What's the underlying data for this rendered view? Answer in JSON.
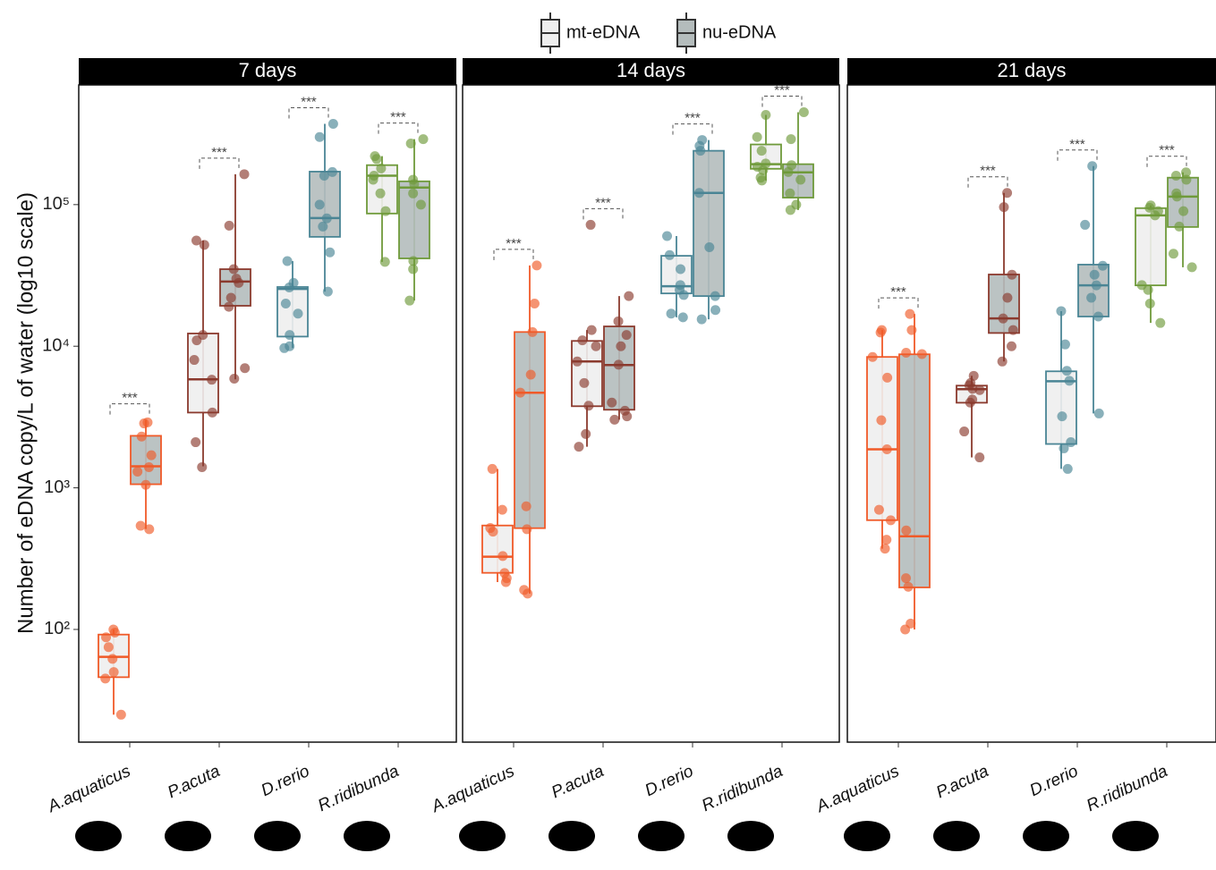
{
  "chart_data": {
    "type": "boxplot",
    "ylabel": "Number of eDNA copy/L of water (log10 scale)",
    "log_scale": true,
    "ylim": [
      16,
      700000
    ],
    "yticks": [
      {
        "value": 100,
        "label": "10²"
      },
      {
        "value": 1000,
        "label": "10³"
      },
      {
        "value": 10000,
        "label": "10⁴"
      },
      {
        "value": 100000,
        "label": "10⁵"
      }
    ],
    "categories": [
      "A.aquaticus",
      "P.acuta",
      "D.rerio",
      "R.ridibunda"
    ],
    "category_colors": [
      "#f05a28",
      "#8b3a2e",
      "#4a8595",
      "#6f9a3a"
    ],
    "series": [
      {
        "name": "mt-eDNA",
        "color": "#eeeeee"
      },
      {
        "name": "nu-eDNA",
        "color": "#b4bcbc"
      }
    ],
    "facets": [
      {
        "title": "7 days",
        "annotations": [
          "***",
          "***",
          "***",
          "***"
        ],
        "boxes": [
          [
            {
              "low": 25,
              "q1": 46,
              "median": 64,
              "q3": 92,
              "high": 100,
              "points": [
                100,
                95,
                88,
                75,
                62,
                50,
                45,
                25
              ]
            },
            {
              "low": 1420,
              "q1": 3400,
              "median": 5840,
              "q3": 12300,
              "high": 55800,
              "points": [
                55800,
                52000,
                12000,
                11000,
                8000,
                5800,
                3400,
                2100,
                1400
              ]
            },
            {
              "low": 9700,
              "q1": 11700,
              "median": 25400,
              "q3": 26200,
              "high": 39900,
              "points": [
                39900,
                28000,
                26000,
                20000,
                17000,
                12000,
                10000,
                9700
              ]
            },
            {
              "low": 39400,
              "q1": 86500,
              "median": 160000,
              "q3": 190000,
              "high": 220000,
              "points": [
                220000,
                210000,
                180000,
                160000,
                150000,
                120000,
                90000,
                39400
              ]
            }
          ],
          [
            {
              "low": 512,
              "q1": 1060,
              "median": 1420,
              "q3": 2330,
              "high": 3020,
              "points": [
                2900,
                2850,
                2300,
                1700,
                1400,
                1300,
                1050,
                540,
                510
              ]
            },
            {
              "low": 5840,
              "q1": 19300,
              "median": 28600,
              "q3": 35000,
              "high": 164000,
              "points": [
                164000,
                71000,
                35000,
                30000,
                28000,
                22000,
                19000,
                7000,
                5900
              ]
            },
            {
              "low": 24300,
              "q1": 59200,
              "median": 80400,
              "q3": 171000,
              "high": 372000,
              "points": [
                372000,
                300000,
                170000,
                160000,
                100000,
                80000,
                70000,
                46000,
                24300
              ]
            },
            {
              "low": 21000,
              "q1": 41700,
              "median": 132000,
              "q3": 146000,
              "high": 290000,
              "points": [
                290000,
                270000,
                150000,
                140000,
                120000,
                100000,
                40000,
                35000,
                21000
              ]
            }
          ]
        ]
      },
      {
        "title": "14 days",
        "annotations": [
          "***",
          "***",
          "***",
          "***"
        ],
        "boxes": [
          [
            {
              "low": 216,
              "q1": 251,
              "median": 326,
              "q3": 542,
              "high": 1360,
              "points": [
                1360,
                700,
                520,
                490,
                330,
                250,
                230,
                216
              ]
            },
            {
              "low": 1950,
              "q1": 3770,
              "median": 7800,
              "q3": 10900,
              "high": 13000,
              "points": [
                72000,
                13000,
                11000,
                10000,
                7800,
                5500,
                3800,
                2400,
                1950
              ]
            },
            {
              "low": 16000,
              "q1": 23600,
              "median": 26500,
              "q3": 43500,
              "high": 60000,
              "points": [
                60000,
                44000,
                35000,
                27000,
                25000,
                23000,
                17000,
                16000
              ]
            },
            {
              "low": 148000,
              "q1": 179000,
              "median": 193000,
              "q3": 266000,
              "high": 430000,
              "points": [
                430000,
                300000,
                240000,
                195000,
                185000,
                175000,
                155000,
                148000
              ]
            }
          ],
          [
            {
              "low": 179,
              "q1": 519,
              "median": 4690,
              "q3": 12600,
              "high": 37200,
              "points": [
                37200,
                20000,
                12600,
                6300,
                4700,
                740,
                510,
                190,
                179
              ]
            },
            {
              "low": 3030,
              "q1": 3560,
              "median": 7360,
              "q3": 13800,
              "high": 22600,
              "points": [
                22600,
                15000,
                12000,
                10000,
                7400,
                4000,
                3500,
                3200,
                3030
              ]
            },
            {
              "low": 15500,
              "q1": 22600,
              "median": 121000,
              "q3": 240000,
              "high": 286000,
              "points": [
                286000,
                260000,
                240000,
                121000,
                50000,
                22600,
                18000,
                15500
              ]
            },
            {
              "low": 91600,
              "q1": 112000,
              "median": 169000,
              "q3": 193000,
              "high": 449000,
              "points": [
                449000,
                290000,
                190000,
                170000,
                150000,
                120000,
                100000,
                91600
              ]
            }
          ]
        ]
      },
      {
        "title": "21 days",
        "annotations": [
          "***",
          "***",
          "***",
          "***"
        ],
        "boxes": [
          [
            {
              "low": 372,
              "q1": 591,
              "median": 1870,
              "q3": 8400,
              "high": 13000,
              "points": [
                13000,
                12500,
                8400,
                6000,
                3000,
                1870,
                700,
                590,
                430,
                372
              ]
            },
            {
              "low": 1640,
              "q1": 3990,
              "median": 4970,
              "q3": 5270,
              "high": 6180,
              "points": [
                6180,
                5500,
                5300,
                5000,
                4900,
                4200,
                4000,
                2500,
                1640
              ]
            },
            {
              "low": 1360,
              "q1": 2040,
              "median": 5660,
              "q3": 6650,
              "high": 17700,
              "points": [
                17700,
                10300,
                6700,
                5700,
                3200,
                2100,
                1900,
                1360
              ]
            },
            {
              "low": 14600,
              "q1": 26900,
              "median": 84000,
              "q3": 94400,
              "high": 98600,
              "points": [
                98600,
                95000,
                90000,
                84000,
                27000,
                25000,
                20000,
                14600
              ]
            }
          ],
          [
            {
              "low": 100,
              "q1": 198,
              "median": 455,
              "q3": 8770,
              "high": 16900,
              "points": [
                16900,
                13000,
                9000,
                8800,
                500,
                230,
                200,
                110,
                100
              ]
            },
            {
              "low": 7800,
              "q1": 12400,
              "median": 15700,
              "q3": 32100,
              "high": 121000,
              "points": [
                121000,
                96000,
                32000,
                22000,
                15700,
                13000,
                10000,
                7800
              ]
            },
            {
              "low": 3350,
              "q1": 16200,
              "median": 26900,
              "q3": 37700,
              "high": 187000,
              "points": [
                187000,
                72000,
                37000,
                32000,
                26900,
                22000,
                16200,
                3350
              ]
            },
            {
              "low": 36100,
              "q1": 69500,
              "median": 114000,
              "q3": 155000,
              "high": 169000,
              "points": [
                169000,
                160000,
                150000,
                120000,
                114000,
                90000,
                70000,
                45000,
                36100
              ]
            }
          ]
        ]
      }
    ]
  }
}
